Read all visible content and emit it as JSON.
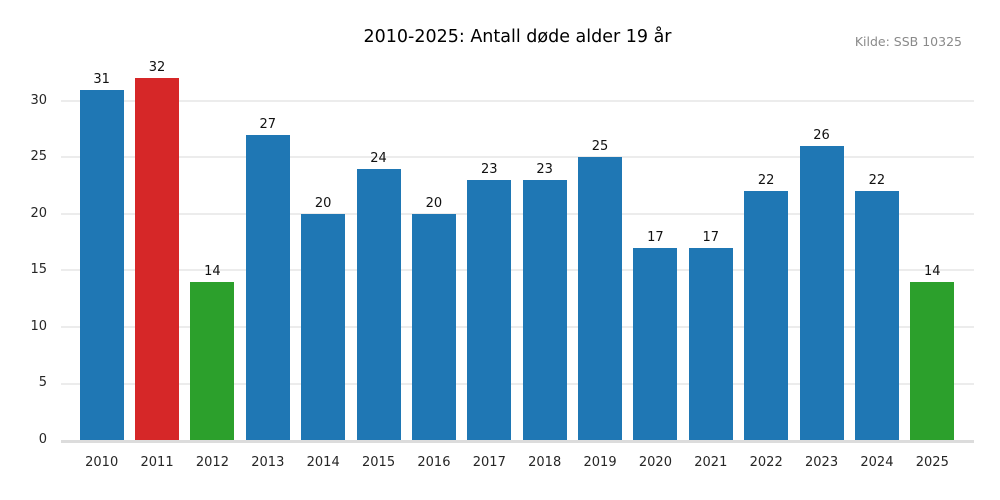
{
  "chart_data": {
    "type": "bar",
    "title": "2010-2025: Antall døde alder 19 år",
    "source": "Kilde: SSB 10325",
    "categories": [
      "2010",
      "2011",
      "2012",
      "2013",
      "2014",
      "2015",
      "2016",
      "2017",
      "2018",
      "2019",
      "2020",
      "2021",
      "2022",
      "2023",
      "2024",
      "2025"
    ],
    "values": [
      31,
      32,
      14,
      27,
      20,
      24,
      20,
      23,
      23,
      25,
      17,
      17,
      22,
      26,
      22,
      14
    ],
    "bar_colors": [
      "#1f77b4",
      "#d62728",
      "#2ca02c",
      "#1f77b4",
      "#1f77b4",
      "#1f77b4",
      "#1f77b4",
      "#1f77b4",
      "#1f77b4",
      "#1f77b4",
      "#1f77b4",
      "#1f77b4",
      "#1f77b4",
      "#1f77b4",
      "#1f77b4",
      "#2ca02c"
    ],
    "colors": {
      "default_bar": "#1f77b4",
      "max_bar": "#d62728",
      "min_bar": "#2ca02c",
      "gridline": "#ececec",
      "baseline": "#dcdcdc",
      "source_text": "#8a8a8a"
    },
    "xlabel": "",
    "ylabel": "",
    "yticks": [
      0,
      5,
      10,
      15,
      20,
      25,
      30
    ],
    "ylim": [
      0,
      33.62
    ],
    "grid": "horizontal",
    "legend": "none",
    "value_labels": "above-bars"
  }
}
